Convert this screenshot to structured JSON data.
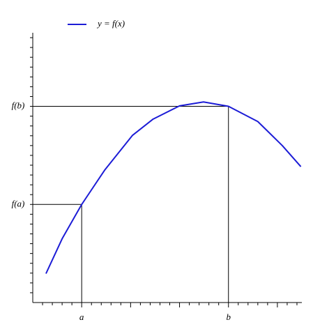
{
  "chart_data": {
    "type": "line",
    "series": [
      {
        "name": "y = f(x)",
        "color": "#1c1cd6",
        "x": [
          0.27,
          0.6,
          1.0,
          1.47,
          2.04,
          2.46,
          3.0,
          3.49,
          4.0,
          4.6,
          5.1,
          5.48
        ],
        "values": [
          0.59,
          1.3,
          2.0,
          2.7,
          3.41,
          3.74,
          4.01,
          4.09,
          4.0,
          3.69,
          3.2,
          2.77
        ]
      }
    ],
    "xlim": [
      0,
      5.5
    ],
    "ylim": [
      0,
      5.5
    ],
    "xticks": [
      {
        "value": 1,
        "label": "a"
      },
      {
        "value": 4,
        "label": "b"
      }
    ],
    "yticks": [
      {
        "value": 2,
        "label": "f(a)"
      },
      {
        "value": 4,
        "label": "f(b)"
      }
    ],
    "xminor": [
      0.2,
      0.4,
      0.6,
      0.8,
      1,
      1.2,
      1.4,
      1.6,
      1.8,
      2,
      2.2,
      2.4,
      2.6,
      2.8,
      3,
      3.2,
      3.4,
      3.6,
      3.8,
      4,
      4.2,
      4.4,
      4.6,
      4.8,
      5,
      5.2,
      5.4
    ],
    "yminor": [
      0.2,
      0.4,
      0.6,
      0.8,
      1,
      1.2,
      1.4,
      1.6,
      1.8,
      2,
      2.2,
      2.4,
      2.6,
      2.8,
      3,
      3.2,
      3.4,
      3.6,
      3.8,
      4,
      4.2,
      4.4,
      4.6,
      4.8,
      5,
      5.2,
      5.4
    ],
    "legend": "top-left"
  }
}
